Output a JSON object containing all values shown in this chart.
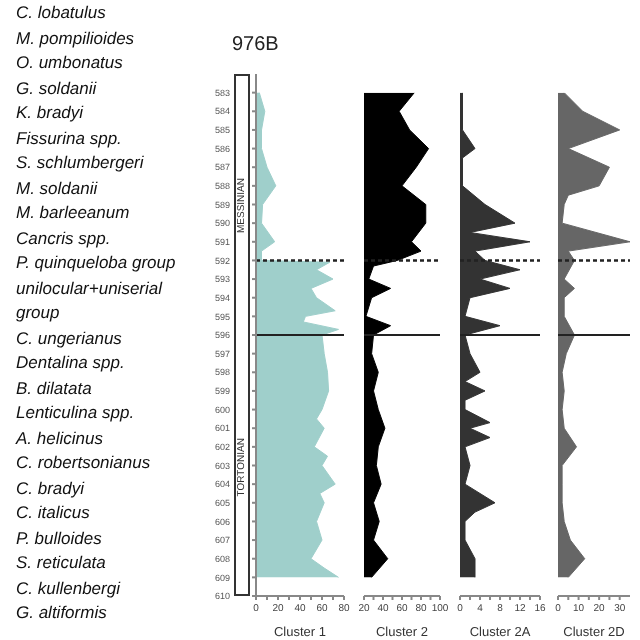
{
  "chart_data": [
    {
      "type": "other",
      "annotations": [
        "C. lobatulus",
        "M. pompilioides",
        "O. umbonatus",
        "G. soldanii",
        "K. bradyi",
        "Fissurina spp.",
        "S. schlumbergeri",
        "M. soldanii",
        "M. barleeanum",
        "Cancris spp.",
        "P. quinqueloba group",
        "unilocular+uniserial group",
        "C. ungerianus",
        "Dentalina spp.",
        "B. dilatata",
        "Lenticulina spp.",
        "A. helicinus",
        "C. robertsonianus",
        "C. bradyi",
        "C. italicus",
        "P. bulloides",
        "S. reticulata",
        "C. kullenbergi",
        "G. altiformis"
      ]
    },
    {
      "type": "area",
      "title": "976B",
      "xlabel": "Cluster 1",
      "orientation": "horizontal",
      "color": "#9fcfcb",
      "annotations": [
        "MESSINIAN",
        "TORTONIAN"
      ],
      "x": [
        583,
        584,
        585,
        586,
        587,
        588,
        589,
        590,
        591,
        591.5,
        592,
        592.1,
        592.5,
        593,
        593.5,
        594,
        594.7,
        595,
        595.3,
        595.7,
        596,
        597,
        598,
        599,
        600,
        600.5,
        601,
        602,
        602.5,
        603,
        604,
        604.5,
        605,
        606,
        607,
        608,
        608.5,
        609
      ],
      "values": [
        3,
        8,
        5,
        5,
        10,
        18,
        6,
        5,
        17,
        5,
        5,
        67,
        55,
        70,
        50,
        55,
        72,
        45,
        43,
        75,
        60,
        62,
        65,
        66,
        60,
        55,
        62,
        53,
        65,
        60,
        72,
        58,
        62,
        55,
        60,
        50,
        62,
        75
      ],
      "xlim": [
        0,
        80
      ],
      "xticks": [
        0,
        {
          "value": 10,
          "label": null
        },
        20,
        {
          "value": 30,
          "label": null
        },
        40,
        {
          "value": 50,
          "label": null
        },
        60,
        {
          "value": 70,
          "label": null
        },
        80
      ],
      "ylim": [
        610,
        582
      ],
      "yticks": [
        583,
        584,
        585,
        586,
        587,
        588,
        589,
        590,
        591,
        592,
        593,
        594,
        595,
        596,
        597,
        598,
        599,
        600,
        601,
        602,
        603,
        604,
        605,
        606,
        607,
        608,
        609,
        610
      ],
      "ref_lines": [
        {
          "axis": "y",
          "value": 592,
          "line_style": "dotted"
        },
        {
          "axis": "y",
          "value": 596,
          "line_style": "solid"
        }
      ]
    },
    {
      "type": "area",
      "xlabel": "Cluster 2",
      "orientation": "horizontal",
      "color": "#000000",
      "tick_labels": "x",
      "x": [
        583,
        584,
        585,
        586,
        587,
        588,
        589,
        590,
        591,
        591.5,
        592,
        592.3,
        593,
        593.5,
        594,
        595,
        595.5,
        596,
        597,
        598,
        599,
        600,
        601,
        602,
        603,
        604,
        605,
        606,
        607,
        608,
        609
      ],
      "values": [
        73,
        57,
        68,
        88,
        75,
        60,
        85,
        85,
        70,
        80,
        55,
        30,
        25,
        48,
        28,
        22,
        48,
        30,
        28,
        35,
        30,
        35,
        42,
        35,
        33,
        38,
        30,
        36,
        30,
        45,
        28
      ],
      "xlim": [
        20,
        100
      ],
      "xticks": [
        20,
        {
          "value": 30,
          "label": null
        },
        40,
        {
          "value": 50,
          "label": null
        },
        60,
        {
          "value": 70,
          "label": null
        },
        80,
        {
          "value": 90,
          "label": null
        },
        100
      ],
      "ylim": [
        610,
        583
      ],
      "yticks": [
        583,
        584,
        585,
        586,
        587,
        588,
        589,
        590,
        591,
        592,
        593,
        594,
        595,
        596,
        597,
        598,
        599,
        600,
        601,
        602,
        603,
        604,
        605,
        606,
        607,
        608,
        609,
        610
      ],
      "ref_lines": [
        {
          "axis": "y",
          "value": 592,
          "line_style": "dotted"
        },
        {
          "axis": "y",
          "value": 596,
          "line_style": "solid"
        }
      ]
    },
    {
      "type": "area",
      "xlabel": "Cluster 2A",
      "orientation": "horizontal",
      "color": "#333333",
      "tick_labels": "x",
      "x": [
        583,
        585,
        586,
        586.5,
        588,
        589,
        590,
        590.5,
        591,
        591.5,
        592,
        592.5,
        593,
        593.5,
        594,
        595,
        595.5,
        596,
        597,
        598,
        598.5,
        599,
        599.5,
        600,
        600.7,
        601,
        601.5,
        602,
        603,
        604,
        605,
        605.5,
        606,
        607,
        608,
        609
      ],
      "values": [
        0.5,
        0.5,
        3,
        0.5,
        0.5,
        5,
        11,
        2,
        14,
        3,
        5,
        12,
        4,
        10,
        2,
        1,
        8,
        1,
        2,
        4,
        1,
        5,
        1,
        1,
        6,
        2,
        6,
        1,
        2,
        1,
        7,
        3,
        1,
        1,
        3,
        3
      ],
      "xlim": [
        0,
        16
      ],
      "xticks": [
        0,
        {
          "value": 2,
          "label": null
        },
        4,
        {
          "value": 6,
          "label": null
        },
        8,
        {
          "value": 10,
          "label": null
        },
        12,
        {
          "value": 14,
          "label": null
        },
        16
      ],
      "ylim": [
        610,
        583
      ],
      "yticks": [
        583,
        584,
        585,
        586,
        587,
        588,
        589,
        590,
        591,
        592,
        593,
        594,
        595,
        596,
        597,
        598,
        599,
        600,
        601,
        602,
        603,
        604,
        605,
        606,
        607,
        608,
        609,
        610
      ],
      "ref_lines": [
        {
          "axis": "y",
          "value": 592,
          "line_style": "dotted"
        },
        {
          "axis": "y",
          "value": 596,
          "line_style": "solid"
        }
      ]
    },
    {
      "type": "area",
      "xlabel": "Cluster 2D",
      "orientation": "horizontal",
      "color": "#666666",
      "tick_labels": "x",
      "x": [
        583,
        584,
        585,
        586,
        587,
        588,
        588.5,
        589,
        590,
        591,
        591.5,
        592,
        593,
        593.5,
        594,
        595,
        596,
        597,
        598,
        599,
        600,
        601,
        602,
        603,
        604,
        605,
        606,
        607,
        608,
        609
      ],
      "values": [
        3,
        12,
        30,
        5,
        25,
        20,
        5,
        3,
        2,
        35,
        5,
        8,
        3,
        8,
        3,
        3,
        8,
        4,
        2,
        3,
        2,
        3,
        9,
        2,
        2,
        2,
        3,
        6,
        13,
        5
      ],
      "xlim": [
        0,
        35
      ],
      "xticks": [
        0,
        {
          "value": 5,
          "label": null
        },
        10,
        {
          "value": 15,
          "label": null
        },
        20,
        {
          "value": 25,
          "label": null
        },
        30
      ],
      "ylim": [
        610,
        583
      ],
      "yticks": [
        583,
        584,
        585,
        586,
        587,
        588,
        589,
        590,
        591,
        592,
        593,
        594,
        595,
        596,
        597,
        598,
        599,
        600,
        601,
        602,
        603,
        604,
        605,
        606,
        607,
        608,
        609,
        610
      ],
      "ref_lines": [
        {
          "axis": "y",
          "value": 592,
          "line_style": "dotted"
        },
        {
          "axis": "y",
          "value": 596,
          "line_style": "solid"
        }
      ]
    }
  ]
}
